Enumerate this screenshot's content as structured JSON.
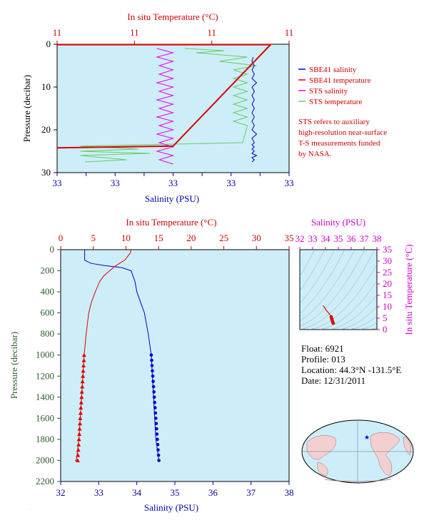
{
  "chart_data": [
    {
      "type": "line",
      "top_axis_label": "In situ Temperature (°C)",
      "top_ticks": [
        "11",
        "11",
        "11",
        "11"
      ],
      "xlabel": "Salinity (PSU)",
      "bottom_ticks": [
        "33",
        "33",
        "33",
        "33",
        "33",
        "33",
        "33",
        "33",
        "33"
      ],
      "ylabel": "Pressure (decibar)",
      "y_ticks": [
        "0",
        "10",
        "20",
        "30"
      ],
      "ylim": [
        0,
        30
      ],
      "legend": [
        {
          "label": "SBE41 salinity",
          "color": "#0000cc"
        },
        {
          "label": "SBE41 temperature",
          "color": "#dd0000"
        },
        {
          "label": "STS salinity",
          "color": "#ee00ee"
        },
        {
          "label": "STS temperature",
          "color": "#66cc66"
        }
      ],
      "note": [
        "STS refers to auxiliary",
        "high-resolution near-surface",
        "T-S measurements funded",
        "by NASA."
      ],
      "series": [
        {
          "name": "SBE41 salinity",
          "x": [
            0.845,
            0.84,
            0.85,
            0.84,
            0.85,
            0.84,
            0.86,
            0.84,
            0.85,
            0.84,
            0.85,
            0.84,
            0.85,
            0.84,
            0.85,
            0.84,
            0.85,
            0.84,
            0.86,
            0.84,
            0.85,
            0.84,
            0.85,
            0.84,
            0.85,
            0.84,
            0.86,
            0.84,
            0.85,
            0.84
          ],
          "y": [
            3,
            4,
            5,
            6,
            7,
            8,
            9,
            10,
            11,
            12,
            13,
            14,
            15,
            16,
            17,
            18,
            19,
            20,
            21,
            22,
            23,
            23.5,
            24,
            24.5,
            25,
            25.5,
            26,
            26.5,
            27,
            27.5
          ]
        },
        {
          "name": "SBE41 temperature",
          "x": [
            0.0,
            0.92,
            0.5,
            0.0
          ],
          "y": [
            0.1,
            0.1,
            23.8,
            24.2
          ]
        },
        {
          "name": "STS salinity",
          "x": [
            0.43,
            0.5,
            0.43,
            0.5,
            0.44,
            0.5,
            0.44,
            0.5,
            0.43,
            0.5,
            0.44,
            0.5,
            0.43,
            0.5,
            0.44,
            0.5,
            0.43,
            0.5,
            0.44,
            0.5,
            0.43,
            0.5,
            0.44,
            0.5,
            0.43,
            0.5,
            0.44,
            0.5
          ],
          "y": [
            1,
            2,
            3,
            4,
            5,
            6,
            7,
            8,
            9,
            10,
            11,
            12,
            13,
            14,
            15,
            16,
            17,
            18,
            19,
            20,
            21,
            22,
            23,
            24,
            25,
            26,
            27,
            28
          ]
        },
        {
          "name": "STS temperature",
          "x": [
            0.55,
            0.72,
            0.6,
            0.82,
            0.7,
            0.86,
            0.76,
            0.82,
            0.76,
            0.82,
            0.76,
            0.82,
            0.76,
            0.82,
            0.76,
            0.82,
            0.76,
            0.82,
            0.76,
            0.82,
            0.8,
            0.1,
            0.35,
            0.1,
            0.4,
            0.1,
            0.3,
            0.12
          ],
          "y": [
            1,
            1.5,
            2,
            3,
            4,
            5,
            6,
            7,
            8,
            9,
            10,
            11,
            12,
            13,
            14,
            15,
            16,
            17,
            18,
            19,
            23,
            23.8,
            24.5,
            25,
            25.5,
            26,
            27,
            27.5
          ]
        }
      ]
    },
    {
      "type": "line",
      "top_axis_label": "In situ Temperature (°C)",
      "top_ticks": [
        "0",
        "5",
        "10",
        "15",
        "20",
        "25",
        "30",
        "35"
      ],
      "xlim_top": [
        0,
        35
      ],
      "xlabel": "Salinity (PSU)",
      "bottom_ticks": [
        "32",
        "33",
        "34",
        "35",
        "36",
        "37",
        "38"
      ],
      "xlim": [
        32,
        38
      ],
      "ylabel": "Pressure (decibar)",
      "y_ticks": [
        "0",
        "200",
        "400",
        "600",
        "800",
        "1000",
        "1200",
        "1400",
        "1600",
        "1800",
        "2000",
        "2200"
      ],
      "ylim": [
        0,
        2200
      ],
      "series": [
        {
          "name": "salinity",
          "color": "#0000cc",
          "x": [
            32.63,
            32.63,
            32.8,
            33.15,
            33.6,
            33.85,
            33.95,
            34.0,
            34.1,
            34.2,
            34.3,
            34.38,
            34.41,
            34.44,
            34.47,
            34.5,
            34.54,
            34.58,
            34.62
          ],
          "y": [
            0,
            100,
            130,
            150,
            170,
            200,
            300,
            400,
            500,
            600,
            800,
            1000,
            1200,
            1400,
            1600,
            1800,
            1900,
            2000,
            2000
          ]
        },
        {
          "name": "temperature",
          "color": "#dd0000",
          "x": [
            10.8,
            10.7,
            9.8,
            8.5,
            7.5,
            6.6,
            6.0,
            5.3,
            4.7,
            4.3,
            3.9,
            3.6,
            3.4,
            3.2,
            3.0,
            2.8,
            2.6,
            2.4,
            2.2
          ],
          "y": [
            0,
            30,
            100,
            150,
            200,
            250,
            300,
            400,
            500,
            600,
            800,
            1000,
            1200,
            1400,
            1600,
            1800,
            1900,
            2000,
            2000
          ]
        },
        {
          "name": "salinity_points",
          "color": "#0000cc",
          "x": [
            34.38,
            34.39,
            34.4,
            34.41,
            34.42,
            34.43,
            34.44,
            34.45,
            34.46,
            34.47,
            34.48,
            34.49,
            34.5,
            34.51,
            34.52,
            34.53,
            34.54,
            34.55,
            34.56,
            34.57,
            34.58
          ],
          "y": [
            1000,
            1050,
            1100,
            1150,
            1200,
            1250,
            1300,
            1350,
            1400,
            1450,
            1500,
            1550,
            1600,
            1650,
            1700,
            1750,
            1800,
            1850,
            1900,
            1950,
            2000
          ]
        },
        {
          "name": "temperature_points",
          "color": "#dd0000",
          "x": [
            3.6,
            3.55,
            3.5,
            3.45,
            3.4,
            3.35,
            3.3,
            3.25,
            3.2,
            3.15,
            3.1,
            3.05,
            3.0,
            2.95,
            2.9,
            2.85,
            2.8,
            2.75,
            2.7,
            2.65,
            2.6
          ],
          "y": [
            1000,
            1050,
            1100,
            1150,
            1200,
            1250,
            1300,
            1350,
            1400,
            1450,
            1500,
            1550,
            1600,
            1650,
            1700,
            1750,
            1800,
            1850,
            1900,
            1950,
            2000
          ]
        }
      ]
    },
    {
      "type": "line",
      "top_axis_label": "Salinity (PSU)",
      "top_ticks": [
        "32",
        "33",
        "34",
        "35",
        "36",
        "37",
        "38"
      ],
      "xlim": [
        32,
        38
      ],
      "ylabel": "In situ Temperature (°C)",
      "y_ticks": [
        "0",
        "5",
        "10",
        "15",
        "20",
        "25",
        "30",
        "35"
      ],
      "ylim": [
        0,
        35
      ],
      "series": [
        {
          "name": "T-S",
          "color": "#dd0000",
          "x": [
            33.8,
            33.95,
            34.05,
            34.2,
            34.35,
            34.45,
            34.5,
            34.55,
            34.6
          ],
          "y": [
            10.5,
            9.5,
            8.5,
            7.5,
            6.5,
            5.5,
            4.5,
            3.5,
            2.8
          ]
        }
      ]
    }
  ],
  "float_info": {
    "float": "Float:  6921",
    "profile": "Profile:  013",
    "location": "Location:  44.3°N  -131.5°E",
    "date": "Date:  12/31/2011"
  },
  "colors": {
    "plot_bg": "#cdeef8",
    "axis_red": "#cc0000",
    "axis_blue": "#0000aa",
    "axis_green": "#2e5a2e",
    "axis_magenta": "#cc00cc"
  }
}
